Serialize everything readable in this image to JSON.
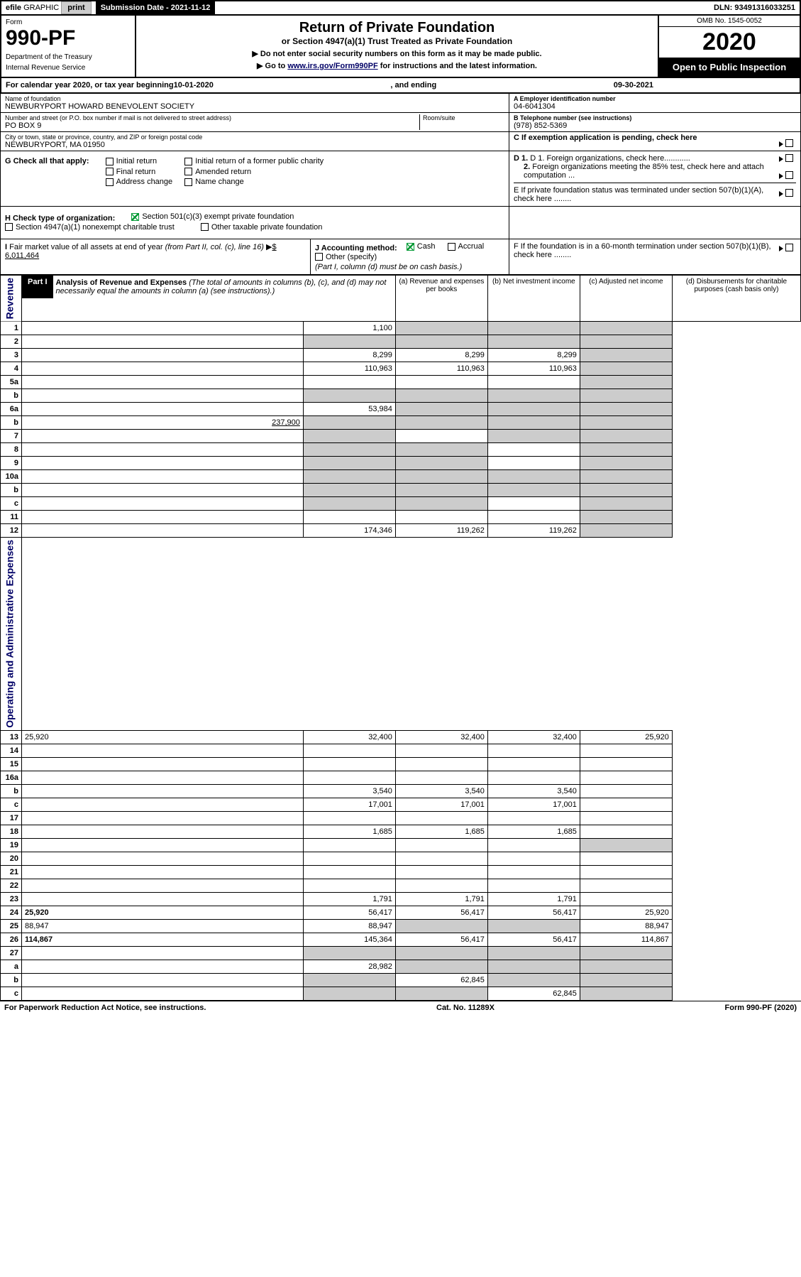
{
  "header": {
    "efile": "efile",
    "graphic": "GRAPHIC",
    "print": "print",
    "submission": "Submission Date - 2021-11-12",
    "dln": "DLN: 93491316033251"
  },
  "form": {
    "form_label": "Form",
    "number": "990-PF",
    "dept1": "Department of the Treasury",
    "dept2": "Internal Revenue Service",
    "title": "Return of Private Foundation",
    "subtitle": "or Section 4947(a)(1) Trust Treated as Private Foundation",
    "note1": "▶ Do not enter social security numbers on this form as it may be made public.",
    "note2": "▶ Go to ",
    "note2_link": "www.irs.gov/Form990PF",
    "note2_rest": " for instructions and the latest information.",
    "omb": "OMB No. 1545-0052",
    "year": "2020",
    "open": "Open to Public Inspection"
  },
  "calyear": {
    "prefix": "For calendar year 2020, or tax year beginning ",
    "begin": "10-01-2020",
    "middle": " , and ending ",
    "end": "09-30-2021"
  },
  "entity": {
    "name_label": "Name of foundation",
    "name": "NEWBURYPORT HOWARD BENEVOLENT SOCIETY",
    "ein_label": "A Employer identification number",
    "ein": "04-6041304",
    "addr_label": "Number and street (or P.O. box number if mail is not delivered to street address)",
    "addr": "PO BOX 9",
    "room_label": "Room/suite",
    "phone_label": "B Telephone number (see instructions)",
    "phone": "(978) 852-5369",
    "city_label": "City or town, state or province, country, and ZIP or foreign postal code",
    "city": "NEWBURYPORT, MA  01950",
    "c_label": "C If exemption application is pending, check here"
  },
  "sectionG": {
    "label": "G Check all that apply:",
    "opts": [
      "Initial return",
      "Final return",
      "Address change",
      "Initial return of a former public charity",
      "Amended return",
      "Name change"
    ]
  },
  "sectionD": {
    "d1": "D 1. Foreign organizations, check here............",
    "d2": "2. Foreign organizations meeting the 85% test, check here and attach computation ...",
    "e": "E  If private foundation status was terminated under section 507(b)(1)(A), check here ........",
    "f": "F  If the foundation is in a 60-month termination under section 507(b)(1)(B), check here ........"
  },
  "sectionH": {
    "label": "H Check type of organization:",
    "opt1": "Section 501(c)(3) exempt private foundation",
    "opt2": "Section 4947(a)(1) nonexempt charitable trust",
    "opt3": "Other taxable private foundation"
  },
  "sectionI": {
    "label": "I Fair market value of all assets at end of year (from Part II, col. (c), line 16) ▶",
    "value": "$  6,011,464"
  },
  "sectionJ": {
    "label": "J Accounting method:",
    "opt1": "Cash",
    "opt2": "Accrual",
    "opt3": "Other (specify)",
    "note": "(Part I, column (d) must be on cash basis.)"
  },
  "part1": {
    "label": "Part I",
    "title": "Analysis of Revenue and Expenses",
    "title_note": " (The total of amounts in columns (b), (c), and (d) may not necessarily equal the amounts in column (a) (see instructions).)",
    "col_a": "(a) Revenue and expenses per books",
    "col_b": "(b) Net investment income",
    "col_c": "(c) Adjusted net income",
    "col_d": "(d) Disbursements for charitable purposes (cash basis only)"
  },
  "sidebars": {
    "revenue": "Revenue",
    "expenses": "Operating and Administrative Expenses"
  },
  "rows": [
    {
      "n": "1",
      "d": "",
      "a": "1,100",
      "b": "",
      "c": "",
      "sb": true,
      "sc": true,
      "sd": true
    },
    {
      "n": "2",
      "d": "",
      "a": "",
      "b": "",
      "c": "",
      "sa": true,
      "sb": true,
      "sc": true,
      "sd": true,
      "bold_not": true
    },
    {
      "n": "3",
      "d": "",
      "a": "8,299",
      "b": "8,299",
      "c": "8,299",
      "sd": true
    },
    {
      "n": "4",
      "d": "",
      "a": "110,963",
      "b": "110,963",
      "c": "110,963",
      "sd": true
    },
    {
      "n": "5a",
      "d": "",
      "a": "",
      "b": "",
      "c": "",
      "sd": true
    },
    {
      "n": "b",
      "d": "",
      "a": "",
      "b": "",
      "c": "",
      "sa": true,
      "sb": true,
      "sc": true,
      "sd": true,
      "inset": true
    },
    {
      "n": "6a",
      "d": "",
      "a": "53,984",
      "b": "",
      "c": "",
      "sb": true,
      "sc": true,
      "sd": true
    },
    {
      "n": "b",
      "d": "",
      "a": "",
      "b": "",
      "c": "",
      "sa": true,
      "sb": true,
      "sc": true,
      "sd": true,
      "inset": true,
      "inline_val": "237,900"
    },
    {
      "n": "7",
      "d": "",
      "a": "",
      "b": "",
      "c": "",
      "sa": true,
      "sc": true,
      "sd": true
    },
    {
      "n": "8",
      "d": "",
      "a": "",
      "b": "",
      "c": "",
      "sa": true,
      "sb": true,
      "sd": true
    },
    {
      "n": "9",
      "d": "",
      "a": "",
      "b": "",
      "c": "",
      "sa": true,
      "sb": true,
      "sd": true
    },
    {
      "n": "10a",
      "d": "",
      "a": "",
      "b": "",
      "c": "",
      "sa": true,
      "sb": true,
      "sc": true,
      "sd": true,
      "inset": true
    },
    {
      "n": "b",
      "d": "",
      "a": "",
      "b": "",
      "c": "",
      "sa": true,
      "sb": true,
      "sc": true,
      "sd": true,
      "inset": true
    },
    {
      "n": "c",
      "d": "",
      "a": "",
      "b": "",
      "c": "",
      "sa": true,
      "sb": true,
      "sd": true,
      "inset": true
    },
    {
      "n": "11",
      "d": "",
      "a": "",
      "b": "",
      "c": "",
      "sd": true
    },
    {
      "n": "12",
      "d": "",
      "a": "174,346",
      "b": "119,262",
      "c": "119,262",
      "sd": true,
      "bold": true
    },
    {
      "n": "13",
      "d": "25,920",
      "a": "32,400",
      "b": "32,400",
      "c": "32,400"
    },
    {
      "n": "14",
      "d": "",
      "a": "",
      "b": "",
      "c": ""
    },
    {
      "n": "15",
      "d": "",
      "a": "",
      "b": "",
      "c": ""
    },
    {
      "n": "16a",
      "d": "",
      "a": "",
      "b": "",
      "c": ""
    },
    {
      "n": "b",
      "d": "",
      "a": "3,540",
      "b": "3,540",
      "c": "3,540",
      "inset": true
    },
    {
      "n": "c",
      "d": "",
      "a": "17,001",
      "b": "17,001",
      "c": "17,001",
      "inset": true
    },
    {
      "n": "17",
      "d": "",
      "a": "",
      "b": "",
      "c": ""
    },
    {
      "n": "18",
      "d": "",
      "a": "1,685",
      "b": "1,685",
      "c": "1,685"
    },
    {
      "n": "19",
      "d": "",
      "a": "",
      "b": "",
      "c": "",
      "sd": true
    },
    {
      "n": "20",
      "d": "",
      "a": "",
      "b": "",
      "c": ""
    },
    {
      "n": "21",
      "d": "",
      "a": "",
      "b": "",
      "c": ""
    },
    {
      "n": "22",
      "d": "",
      "a": "",
      "b": "",
      "c": ""
    },
    {
      "n": "23",
      "d": "",
      "a": "1,791",
      "b": "1,791",
      "c": "1,791"
    },
    {
      "n": "24",
      "d": "25,920",
      "a": "56,417",
      "b": "56,417",
      "c": "56,417",
      "bold": true
    },
    {
      "n": "25",
      "d": "88,947",
      "a": "88,947",
      "b": "",
      "c": "",
      "sb": true,
      "sc": true
    },
    {
      "n": "26",
      "d": "114,867",
      "a": "145,364",
      "b": "56,417",
      "c": "56,417",
      "bold": true
    },
    {
      "n": "27",
      "d": "",
      "a": "",
      "b": "",
      "c": "",
      "sa": true,
      "sb": true,
      "sc": true,
      "sd": true
    },
    {
      "n": "a",
      "d": "",
      "a": "28,982",
      "b": "",
      "c": "",
      "sb": true,
      "sc": true,
      "sd": true,
      "bold": true,
      "inset": true
    },
    {
      "n": "b",
      "d": "",
      "a": "",
      "b": "62,845",
      "c": "",
      "sa": true,
      "sc": true,
      "sd": true,
      "bold": true,
      "inset": true
    },
    {
      "n": "c",
      "d": "",
      "a": "",
      "b": "",
      "c": "62,845",
      "sa": true,
      "sb": true,
      "sd": true,
      "bold": true,
      "inset": true
    }
  ],
  "footer": {
    "left": "For Paperwork Reduction Act Notice, see instructions.",
    "mid": "Cat. No. 11289X",
    "right": "Form 990-PF (2020)"
  }
}
